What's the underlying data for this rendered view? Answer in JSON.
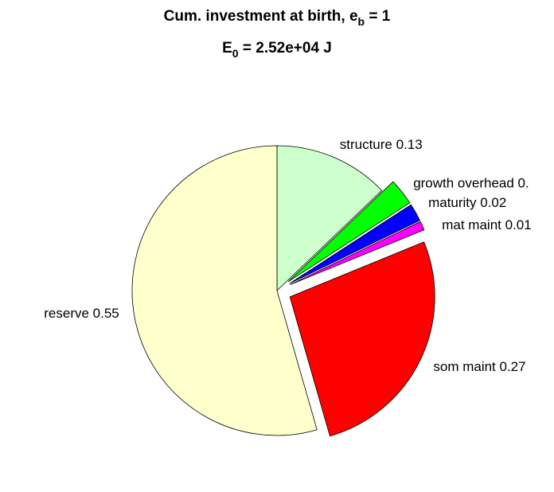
{
  "chart_data": {
    "type": "pie",
    "title": [
      "Cum. investment at birth, e",
      "b",
      " = 1"
    ],
    "subtitle": [
      "E",
      "0",
      " = 2.52e+04 J"
    ],
    "labels": [
      "structure 0.13",
      "growth overhead 0.",
      "maturity 0.02",
      "mat maint 0.01",
      "som maint 0.27",
      "reserve 0.55"
    ],
    "values": [
      0.13,
      0.03,
      0.02,
      0.01,
      0.27,
      0.55
    ],
    "colors": [
      "#ccffcc",
      "#00ff00",
      "#0000ff",
      "#ff00ff",
      "#ff0000",
      "#ffffcc"
    ],
    "explode": [
      0,
      1,
      1,
      1,
      1,
      0
    ]
  }
}
